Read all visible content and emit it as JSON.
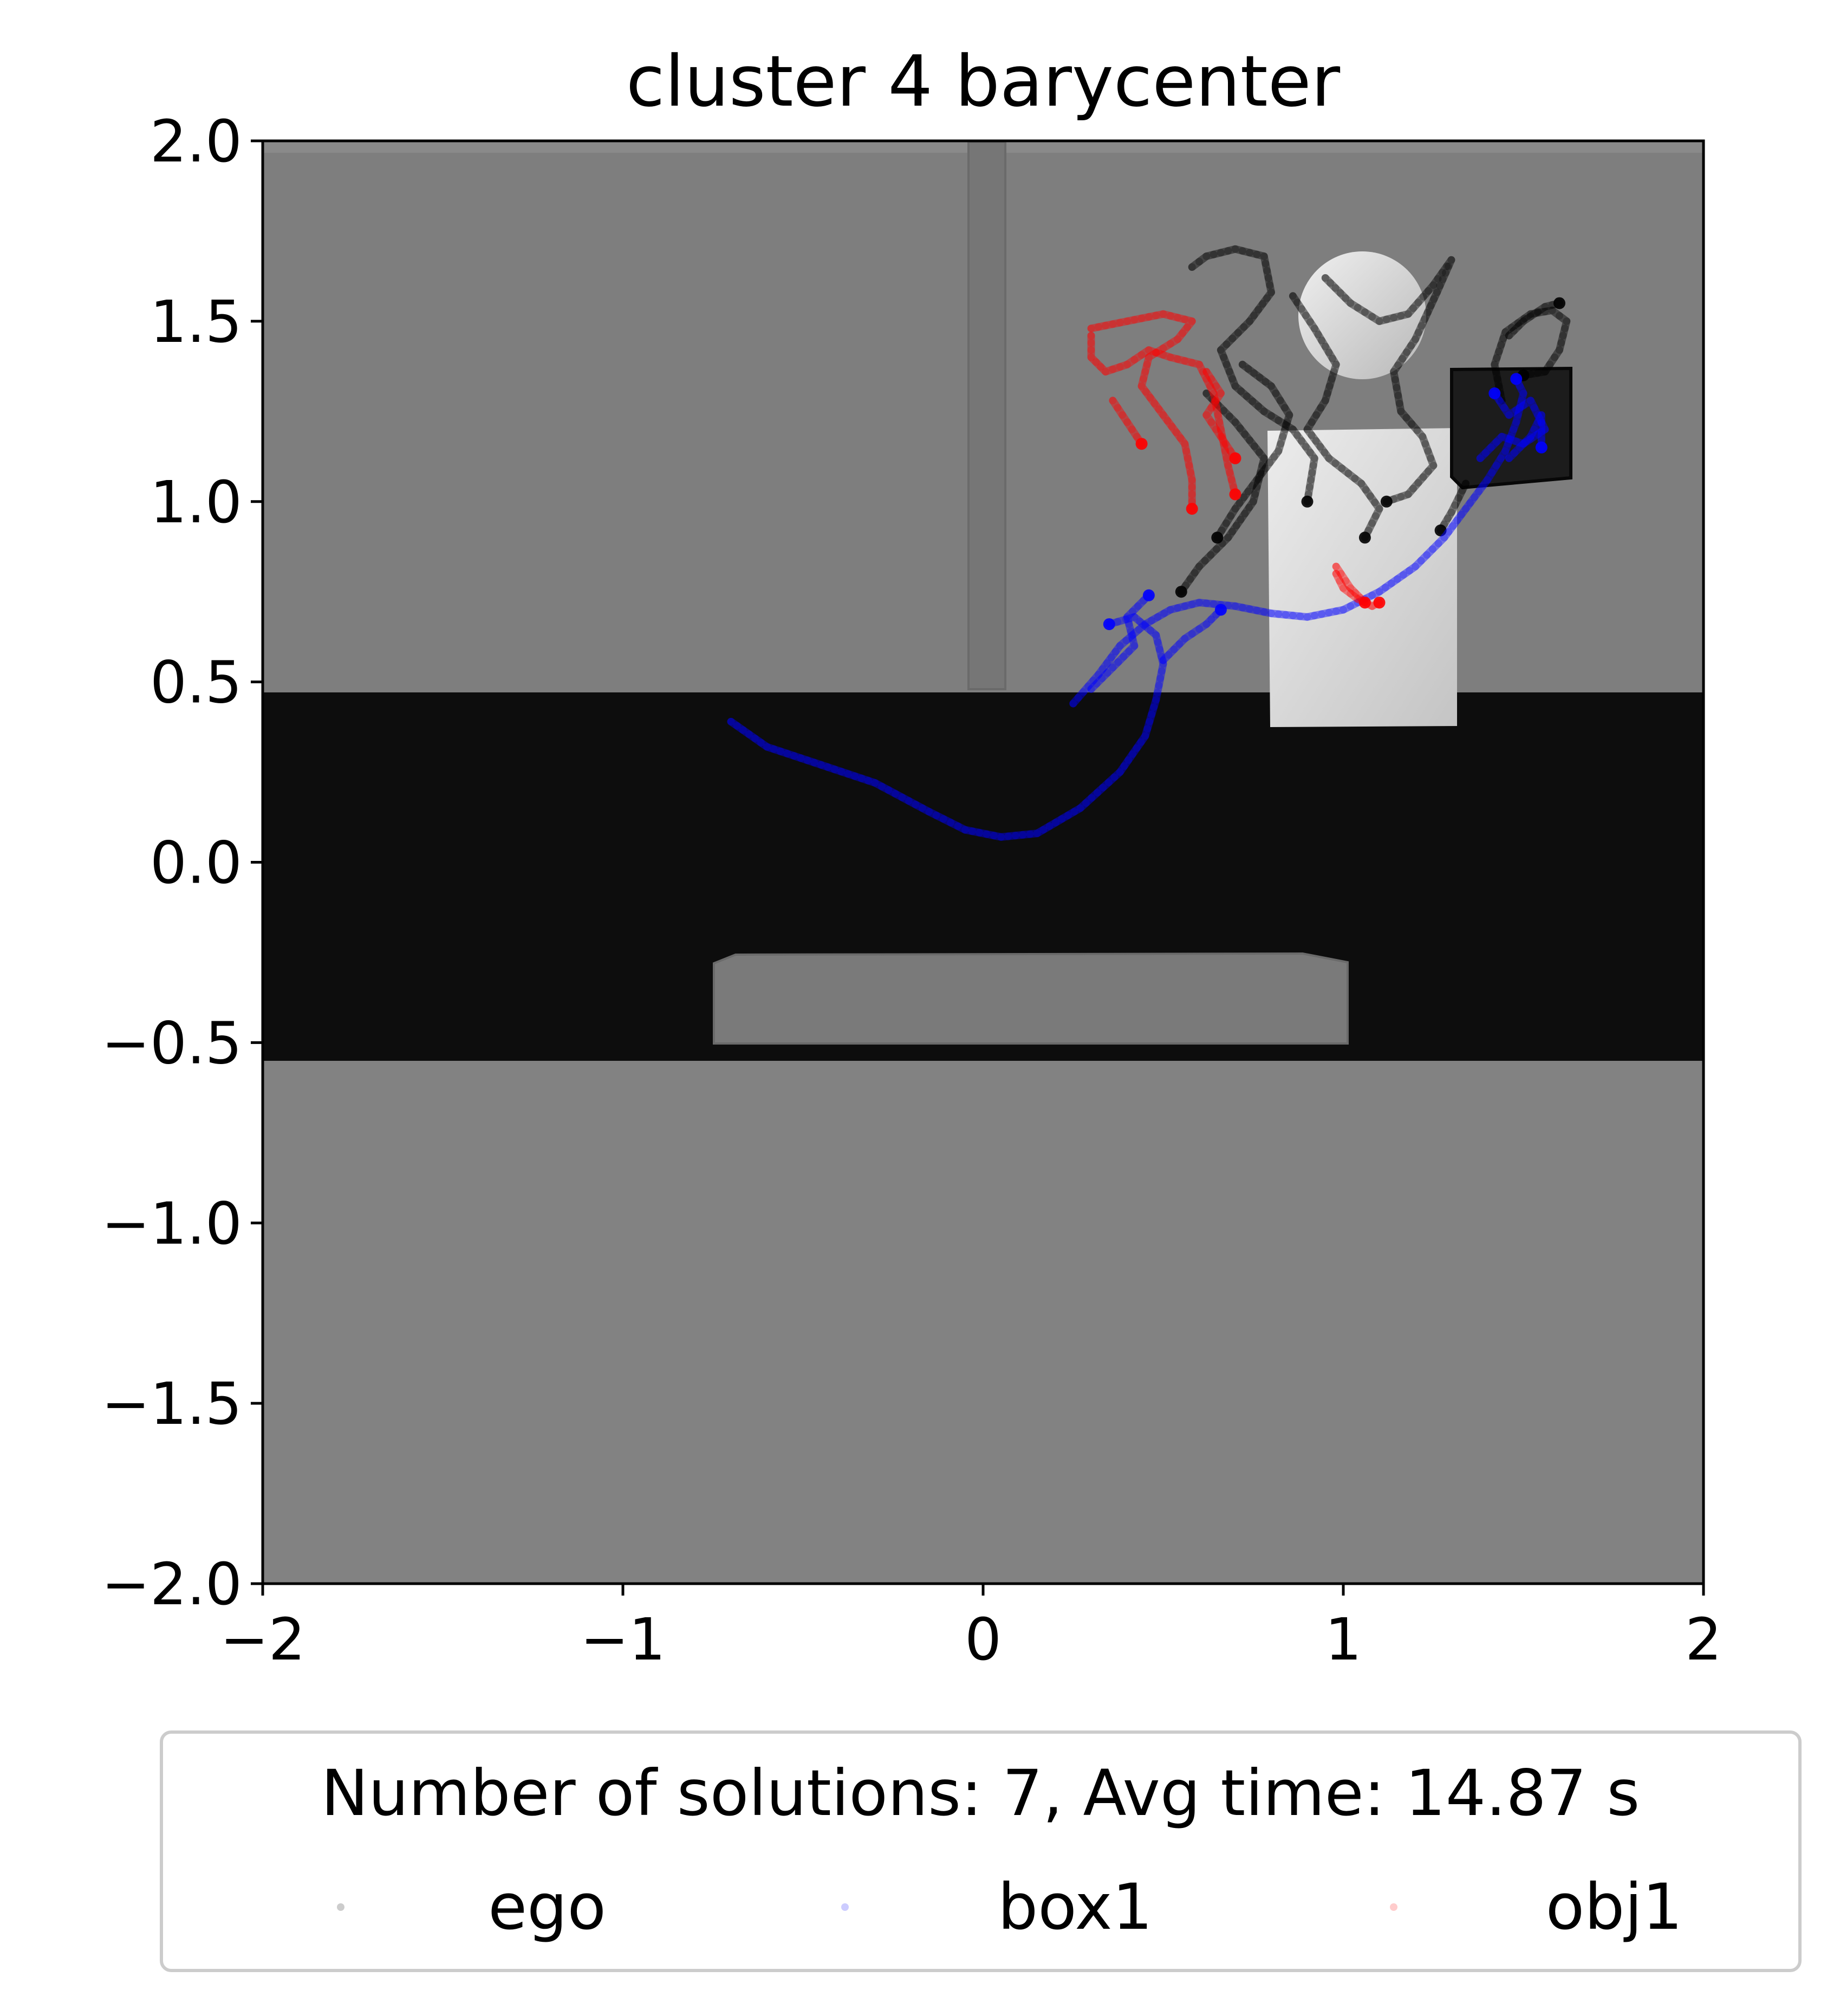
{
  "chart_data": {
    "type": "scatter",
    "title": "cluster 4 barycenter",
    "xlabel": "",
    "ylabel": "",
    "xlim": [
      -2,
      2
    ],
    "ylim": [
      -2,
      2
    ],
    "x_ticks": [
      -2,
      -1,
      0,
      1,
      2
    ],
    "y_ticks": [
      2.0,
      1.5,
      1.0,
      0.5,
      0.0,
      -0.5,
      -1.0,
      -1.5,
      -2.0
    ],
    "x_tick_labels": [
      "−2",
      "−1",
      "0",
      "1",
      "2"
    ],
    "y_tick_labels": [
      "2.0",
      "1.5",
      "1.0",
      "0.5",
      "0.0",
      "−0.5",
      "−1.0",
      "−1.5",
      "−2.0"
    ],
    "grid": false,
    "background": "top-down scene render: grey floor, dark band from y≈-0.55 to 0.47, grey bench, vertical pole at x≈0, light box, dark cube, light disc",
    "legend": {
      "placement": "below plot",
      "title": "Number of solutions: 7, Avg time: 14.87 s"
    },
    "series": [
      {
        "name": "ego",
        "color": "#000000",
        "paths": [
          [
            [
              0.58,
              1.65
            ],
            [
              0.62,
              1.68
            ],
            [
              0.7,
              1.7
            ],
            [
              0.78,
              1.68
            ],
            [
              0.8,
              1.58
            ],
            [
              0.74,
              1.5
            ],
            [
              0.66,
              1.42
            ],
            [
              0.7,
              1.32
            ],
            [
              0.78,
              1.25
            ],
            [
              0.86,
              1.2
            ],
            [
              0.92,
              1.12
            ],
            [
              0.9,
              1.0
            ]
          ],
          [
            [
              0.86,
              1.57
            ],
            [
              0.92,
              1.48
            ],
            [
              0.98,
              1.38
            ],
            [
              0.95,
              1.28
            ],
            [
              0.9,
              1.2
            ],
            [
              0.96,
              1.12
            ],
            [
              1.05,
              1.05
            ],
            [
              1.1,
              0.98
            ],
            [
              1.06,
              0.9
            ]
          ],
          [
            [
              0.95,
              1.62
            ],
            [
              1.02,
              1.55
            ],
            [
              1.1,
              1.5
            ],
            [
              1.18,
              1.52
            ],
            [
              1.25,
              1.6
            ],
            [
              1.3,
              1.67
            ],
            [
              1.26,
              1.58
            ],
            [
              1.2,
              1.45
            ],
            [
              1.14,
              1.36
            ],
            [
              1.16,
              1.25
            ],
            [
              1.22,
              1.18
            ],
            [
              1.25,
              1.1
            ],
            [
              1.18,
              1.02
            ],
            [
              1.12,
              1.0
            ]
          ],
          [
            [
              1.44,
              1.28
            ],
            [
              1.42,
              1.38
            ],
            [
              1.45,
              1.47
            ],
            [
              1.52,
              1.52
            ],
            [
              1.58,
              1.53
            ],
            [
              1.62,
              1.5
            ],
            [
              1.6,
              1.42
            ],
            [
              1.56,
              1.36
            ],
            [
              1.5,
              1.35
            ]
          ],
          [
            [
              1.46,
              1.46
            ],
            [
              1.5,
              1.5
            ],
            [
              1.56,
              1.54
            ],
            [
              1.6,
              1.55
            ]
          ],
          [
            [
              1.34,
              1.05
            ],
            [
              1.3,
              0.97
            ],
            [
              1.27,
              0.92
            ]
          ],
          [
            [
              0.62,
              1.3
            ],
            [
              0.7,
              1.22
            ],
            [
              0.78,
              1.12
            ],
            [
              0.75,
              1.0
            ],
            [
              0.68,
              0.9
            ],
            [
              0.6,
              0.82
            ],
            [
              0.55,
              0.75
            ]
          ],
          [
            [
              0.72,
              1.38
            ],
            [
              0.8,
              1.32
            ],
            [
              0.85,
              1.24
            ],
            [
              0.82,
              1.14
            ],
            [
              0.76,
              1.06
            ],
            [
              0.7,
              0.98
            ],
            [
              0.65,
              0.9
            ]
          ]
        ]
      },
      {
        "name": "box1",
        "color": "#0000ff",
        "paths": [
          [
            [
              -0.7,
              0.39
            ],
            [
              -0.6,
              0.32
            ],
            [
              -0.45,
              0.27
            ],
            [
              -0.3,
              0.22
            ],
            [
              -0.15,
              0.14
            ],
            [
              -0.05,
              0.09
            ],
            [
              0.05,
              0.07
            ],
            [
              0.15,
              0.08
            ],
            [
              0.27,
              0.15
            ],
            [
              0.38,
              0.25
            ],
            [
              0.45,
              0.35
            ],
            [
              0.48,
              0.45
            ],
            [
              0.5,
              0.55
            ],
            [
              0.48,
              0.63
            ],
            [
              0.42,
              0.68
            ],
            [
              0.35,
              0.66
            ]
          ],
          [
            [
              0.25,
              0.44
            ],
            [
              0.32,
              0.52
            ],
            [
              0.38,
              0.6
            ],
            [
              0.45,
              0.66
            ],
            [
              0.52,
              0.7
            ],
            [
              0.6,
              0.72
            ],
            [
              0.7,
              0.71
            ],
            [
              0.8,
              0.69
            ],
            [
              0.9,
              0.68
            ],
            [
              1.0,
              0.7
            ],
            [
              1.1,
              0.75
            ],
            [
              1.2,
              0.82
            ],
            [
              1.28,
              0.9
            ],
            [
              1.34,
              0.98
            ],
            [
              1.4,
              1.06
            ],
            [
              1.45,
              1.14
            ],
            [
              1.48,
              1.22
            ],
            [
              1.5,
              1.3
            ],
            [
              1.48,
              1.34
            ]
          ],
          [
            [
              0.3,
              0.48
            ],
            [
              0.36,
              0.54
            ],
            [
              0.42,
              0.6
            ],
            [
              0.4,
              0.68
            ],
            [
              0.46,
              0.74
            ]
          ],
          [
            [
              0.5,
              0.56
            ],
            [
              0.56,
              0.62
            ],
            [
              0.62,
              0.66
            ],
            [
              0.66,
              0.7
            ]
          ],
          [
            [
              1.38,
              1.12
            ],
            [
              1.44,
              1.18
            ],
            [
              1.5,
              1.16
            ],
            [
              1.56,
              1.2
            ],
            [
              1.52,
              1.28
            ],
            [
              1.46,
              1.24
            ],
            [
              1.42,
              1.3
            ]
          ],
          [
            [
              1.46,
              1.12
            ],
            [
              1.52,
              1.18
            ],
            [
              1.55,
              1.24
            ],
            [
              1.55,
              1.15
            ]
          ]
        ]
      },
      {
        "name": "obj1",
        "color": "#ff0000",
        "paths": [
          [
            [
              0.3,
              1.46
            ],
            [
              0.3,
              1.4
            ],
            [
              0.34,
              1.36
            ],
            [
              0.4,
              1.38
            ],
            [
              0.46,
              1.42
            ],
            [
              0.52,
              1.4
            ],
            [
              0.6,
              1.38
            ],
            [
              0.64,
              1.3
            ],
            [
              0.66,
              1.2
            ],
            [
              0.68,
              1.1
            ],
            [
              0.7,
              1.02
            ]
          ],
          [
            [
              0.3,
              1.48
            ],
            [
              0.4,
              1.5
            ],
            [
              0.5,
              1.52
            ],
            [
              0.58,
              1.5
            ],
            [
              0.54,
              1.45
            ],
            [
              0.46,
              1.4
            ],
            [
              0.44,
              1.32
            ],
            [
              0.5,
              1.24
            ],
            [
              0.56,
              1.16
            ],
            [
              0.58,
              1.06
            ],
            [
              0.58,
              0.98
            ]
          ],
          [
            [
              0.62,
              1.36
            ],
            [
              0.66,
              1.3
            ],
            [
              0.62,
              1.24
            ],
            [
              0.66,
              1.18
            ],
            [
              0.7,
              1.12
            ]
          ],
          [
            [
              0.36,
              1.28
            ],
            [
              0.4,
              1.22
            ],
            [
              0.44,
              1.16
            ]
          ],
          [
            [
              0.98,
              0.8
            ],
            [
              1.0,
              0.76
            ],
            [
              1.04,
              0.73
            ],
            [
              1.08,
              0.71
            ],
            [
              1.1,
              0.72
            ]
          ],
          [
            [
              0.98,
              0.82
            ],
            [
              1.02,
              0.76
            ],
            [
              1.06,
              0.72
            ]
          ]
        ]
      }
    ]
  }
}
